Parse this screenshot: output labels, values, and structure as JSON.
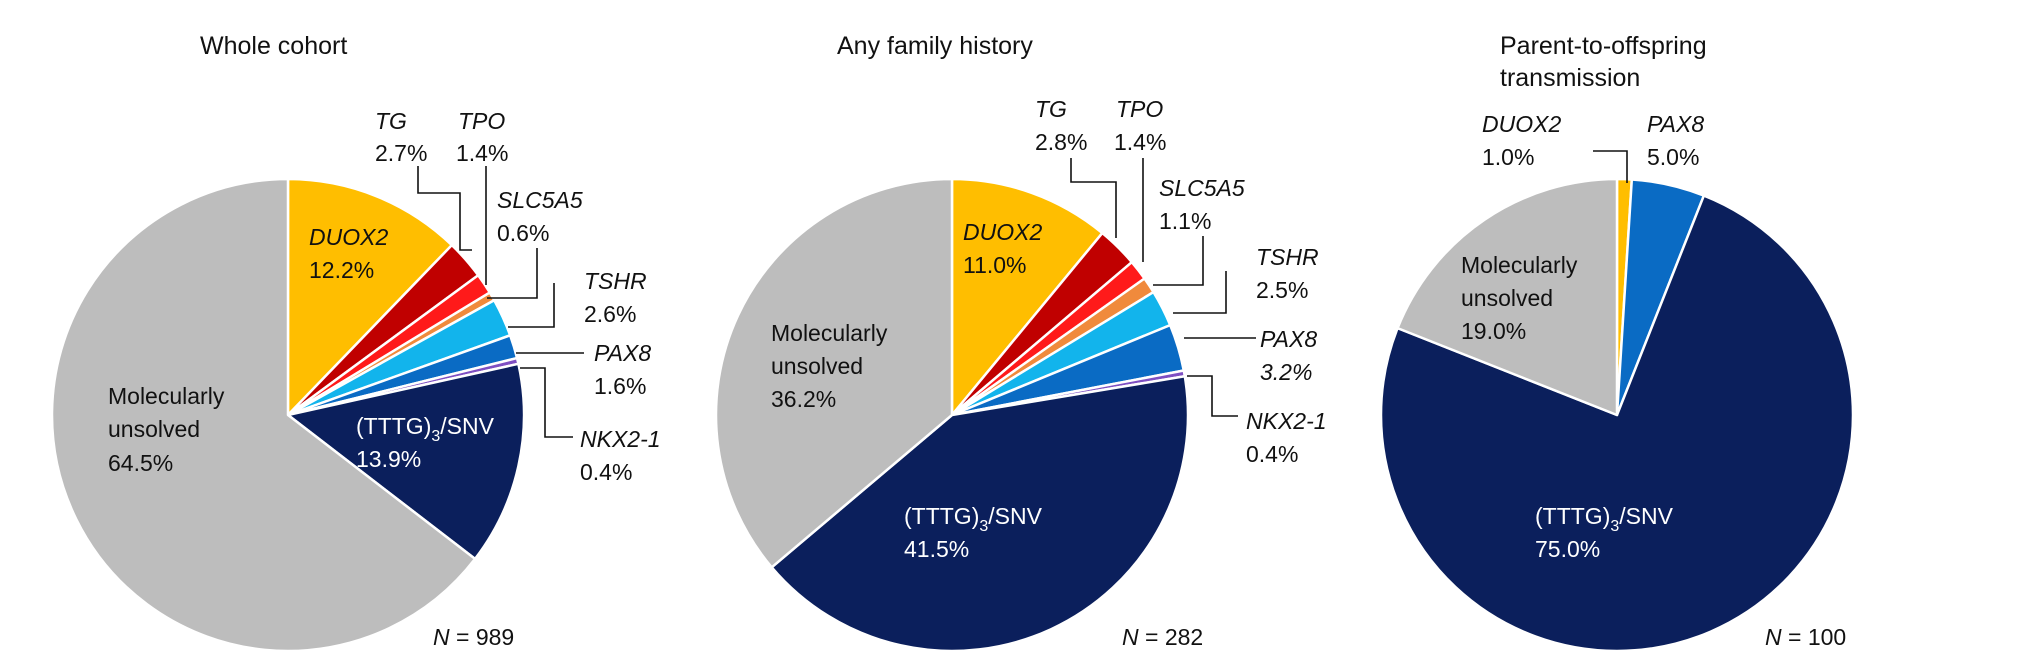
{
  "colors": {
    "DUOX2": "#FFBE00",
    "TG": "#C00000",
    "TPO": "#FF1A1A",
    "SLC5A5": "#F08A3C",
    "TSHR": "#12B4EC",
    "PAX8": "#0A6BC4",
    "NKX2-1": "#7E4FC2",
    "TTTG": "#0B1F5C",
    "unsolved": "#BDBDBD"
  },
  "chart_data": [
    {
      "type": "pie",
      "title": "Whole cohort",
      "n_prefix": "N",
      "n_value": "= 989",
      "slices": [
        {
          "key": "DUOX2",
          "name": "DUOX2",
          "value": 12.2,
          "pct": "12.2%",
          "italic": true
        },
        {
          "key": "TG",
          "name": "TG",
          "value": 2.7,
          "pct": "2.7%",
          "italic": true
        },
        {
          "key": "TPO",
          "name": "TPO",
          "value": 1.4,
          "pct": "1.4%",
          "italic": true
        },
        {
          "key": "SLC5A5",
          "name": "SLC5A5",
          "value": 0.6,
          "pct": "0.6%",
          "italic": true
        },
        {
          "key": "TSHR",
          "name": "TSHR",
          "value": 2.6,
          "pct": "2.6%",
          "italic": true
        },
        {
          "key": "PAX8",
          "name": "PAX8",
          "value": 1.6,
          "pct": "1.6%",
          "italic": true
        },
        {
          "key": "NKX2-1",
          "name": "NKX2-1",
          "value": 0.4,
          "pct": "0.4%",
          "italic": true
        },
        {
          "key": "TTTG",
          "name": "(TTTG)3/SNV",
          "value": 13.9,
          "pct": "13.9%"
        },
        {
          "key": "unsolved",
          "name": "Molecularly unsolved",
          "value": 64.5,
          "pct": "64.5%"
        }
      ]
    },
    {
      "type": "pie",
      "title": "Any family history",
      "n_prefix": "N",
      "n_value": "= 282",
      "slices": [
        {
          "key": "DUOX2",
          "name": "DUOX2",
          "value": 11.0,
          "pct": "11.0%",
          "italic": true
        },
        {
          "key": "TG",
          "name": "TG",
          "value": 2.8,
          "pct": "2.8%",
          "italic": true
        },
        {
          "key": "TPO",
          "name": "TPO",
          "value": 1.4,
          "pct": "1.4%",
          "italic": true
        },
        {
          "key": "SLC5A5",
          "name": "SLC5A5",
          "value": 1.1,
          "pct": "1.1%",
          "italic": true
        },
        {
          "key": "TSHR",
          "name": "TSHR",
          "value": 2.5,
          "pct": "2.5%",
          "italic": true
        },
        {
          "key": "PAX8",
          "name": "PAX8",
          "value": 3.2,
          "pct": "3.2%",
          "italic": true
        },
        {
          "key": "NKX2-1",
          "name": "NKX2-1",
          "value": 0.4,
          "pct": "0.4%",
          "italic": true
        },
        {
          "key": "TTTG",
          "name": "(TTTG)3/SNV",
          "value": 41.5,
          "pct": "41.5%"
        },
        {
          "key": "unsolved",
          "name": "Molecularly unsolved",
          "value": 36.2,
          "pct": "36.2%"
        }
      ]
    },
    {
      "type": "pie",
      "title": "Parent-to-offspring transmission",
      "n_prefix": "N",
      "n_value": "= 100",
      "slices": [
        {
          "key": "DUOX2",
          "name": "DUOX2",
          "value": 1.0,
          "pct": "1.0%",
          "italic": true
        },
        {
          "key": "PAX8",
          "name": "PAX8",
          "value": 5.0,
          "pct": "5.0%",
          "italic": true
        },
        {
          "key": "TTTG",
          "name": "(TTTG)3/SNV",
          "value": 75.0,
          "pct": "75.0%"
        },
        {
          "key": "unsolved",
          "name": "Molecularly unsolved",
          "value": 19.0,
          "pct": "19.0%"
        }
      ]
    }
  ]
}
